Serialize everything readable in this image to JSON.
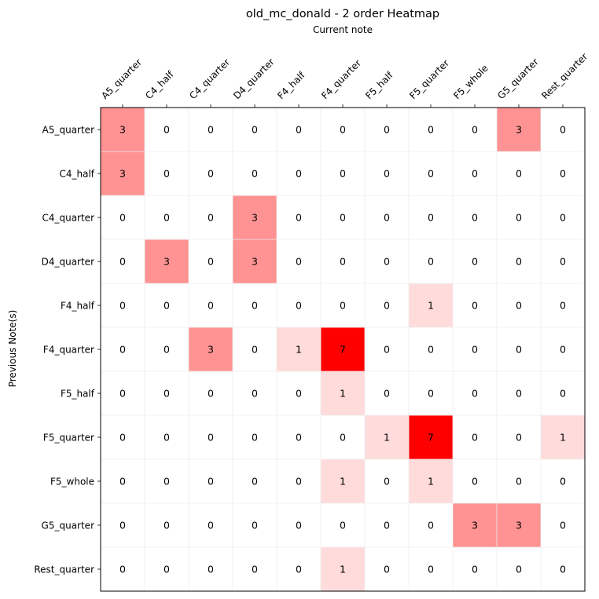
{
  "chart_data": {
    "type": "heatmap",
    "title": "old_mc_donald - 2 order Heatmap",
    "xlabel": "Current note",
    "ylabel": "Previous Note(s)",
    "x_categories": [
      "A5_quarter",
      "C4_half",
      "C4_quarter",
      "D4_quarter",
      "F4_half",
      "F4_quarter",
      "F5_half",
      "F5_quarter",
      "F5_whole",
      "G5_quarter",
      "Rest_quarter"
    ],
    "y_categories": [
      "A5_quarter",
      "C4_half",
      "C4_quarter",
      "D4_quarter",
      "F4_half",
      "F4_quarter",
      "F5_half",
      "F5_quarter",
      "F5_whole",
      "G5_quarter",
      "Rest_quarter"
    ],
    "values": [
      [
        3,
        0,
        0,
        0,
        0,
        0,
        0,
        0,
        0,
        3,
        0
      ],
      [
        3,
        0,
        0,
        0,
        0,
        0,
        0,
        0,
        0,
        0,
        0
      ],
      [
        0,
        0,
        0,
        3,
        0,
        0,
        0,
        0,
        0,
        0,
        0
      ],
      [
        0,
        3,
        0,
        3,
        0,
        0,
        0,
        0,
        0,
        0,
        0
      ],
      [
        0,
        0,
        0,
        0,
        0,
        0,
        0,
        1,
        0,
        0,
        0
      ],
      [
        0,
        0,
        3,
        0,
        1,
        7,
        0,
        0,
        0,
        0,
        0
      ],
      [
        0,
        0,
        0,
        0,
        0,
        1,
        0,
        0,
        0,
        0,
        0
      ],
      [
        0,
        0,
        0,
        0,
        0,
        0,
        1,
        7,
        0,
        0,
        1
      ],
      [
        0,
        0,
        0,
        0,
        0,
        1,
        0,
        1,
        0,
        0,
        0
      ],
      [
        0,
        0,
        0,
        0,
        0,
        0,
        0,
        0,
        3,
        3,
        0
      ],
      [
        0,
        0,
        0,
        0,
        0,
        1,
        0,
        0,
        0,
        0,
        0
      ]
    ],
    "value_range": [
      0,
      7
    ],
    "colormap": {
      "low": "#ffffff",
      "high": "#ff0000"
    },
    "x_axis_position": "top",
    "grid": true,
    "grid_color": "#eeeeee"
  }
}
